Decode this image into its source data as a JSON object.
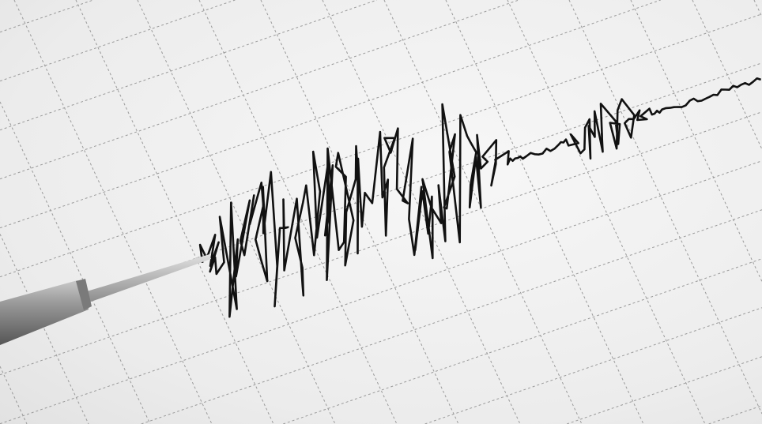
{
  "image": {
    "subject": "seismograph",
    "colors": {
      "paper": "#efefef",
      "grid": "#9a9a9a",
      "trace": "#111111",
      "stylus_body": "#8a8a8a",
      "needle": "#b5b5b5"
    }
  }
}
